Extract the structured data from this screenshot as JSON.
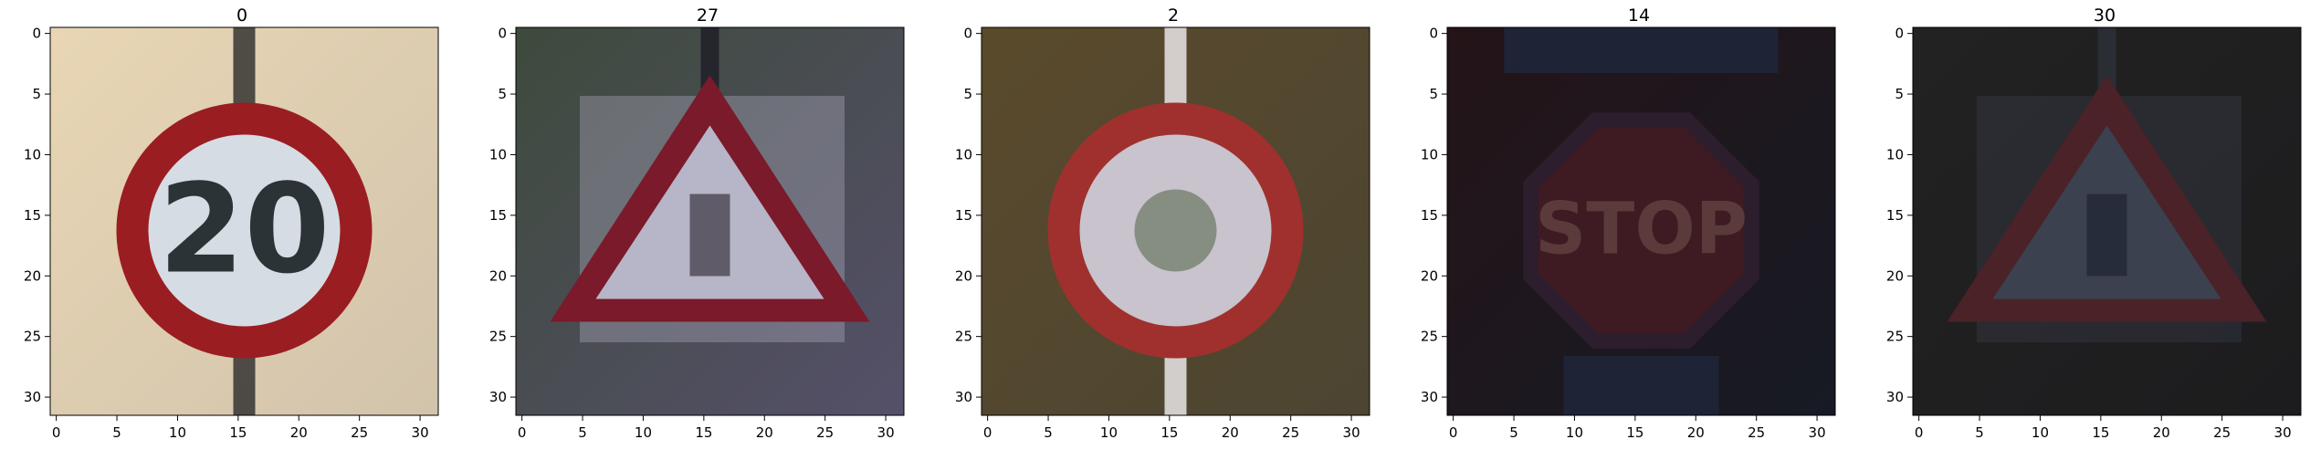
{
  "panels": [
    {
      "title": "0",
      "sign": "speed-limit",
      "sign_text": "20",
      "palette": {
        "bg_left": "#e8d6b4",
        "bg_right": "#d2c3ac",
        "ring": "#9a1d22",
        "inner": "#d6dce3",
        "text": "#2c3336",
        "pole": "#2a2a2a"
      }
    },
    {
      "title": "27",
      "sign": "warning-triangle",
      "sign_text": "",
      "palette": {
        "bg_left": "#3e4a3c",
        "bg_right": "#55506a",
        "ring": "#7a1a2a",
        "inner": "#b7b5c8",
        "text": "#3a3440",
        "pole": "#25252d"
      }
    },
    {
      "title": "2",
      "sign": "speed-limit",
      "sign_text": "",
      "palette": {
        "bg_left": "#5a4a2c",
        "bg_right": "#4c4532",
        "ring": "#a0302e",
        "inner": "#c8c3cc",
        "text": "#5a6a50",
        "pole": "#f2f0f4"
      }
    },
    {
      "title": "14",
      "sign": "stop",
      "sign_text": "STOP",
      "palette": {
        "bg_left": "#241418",
        "bg_right": "#171a24",
        "ring": "#2c1e2c",
        "inner": "#3e1a22",
        "text": "#5a3a3a",
        "pole": "#1e2436"
      }
    },
    {
      "title": "30",
      "sign": "warning-triangle",
      "sign_text": "",
      "palette": {
        "bg_left": "#232222",
        "bg_right": "#1c1c1e",
        "ring": "#4a2228",
        "inner": "#3c4150",
        "text": "#1e2430",
        "pole": "#2a2d34"
      }
    }
  ],
  "axes": {
    "x_ticks": [
      "0",
      "5",
      "10",
      "15",
      "20",
      "25",
      "30"
    ],
    "y_ticks": [
      "0",
      "5",
      "10",
      "15",
      "20",
      "25",
      "30"
    ],
    "x_tick_values": [
      0,
      5,
      10,
      15,
      20,
      25,
      30
    ],
    "y_tick_values": [
      0,
      5,
      10,
      15,
      20,
      25,
      30
    ],
    "xlim": [
      -0.5,
      31.5
    ],
    "ylim": [
      31.5,
      -0.5
    ]
  }
}
